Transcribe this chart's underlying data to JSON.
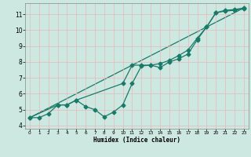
{
  "xlabel": "Humidex (Indice chaleur)",
  "bg_color": "#cce8e0",
  "grid_color": "#e8b8b8",
  "line_color": "#1a7a6a",
  "xlim": [
    -0.5,
    23.5
  ],
  "ylim": [
    3.8,
    11.7
  ],
  "yticks": [
    4,
    5,
    6,
    7,
    8,
    9,
    10,
    11
  ],
  "xticks": [
    0,
    1,
    2,
    3,
    4,
    5,
    6,
    7,
    8,
    9,
    10,
    11,
    12,
    13,
    14,
    15,
    16,
    17,
    18,
    19,
    20,
    21,
    22,
    23
  ],
  "series1_x": [
    0,
    1,
    2,
    3,
    4,
    5,
    6,
    7,
    8,
    9,
    10,
    11,
    12,
    13,
    14,
    15,
    16,
    17,
    18,
    19,
    20,
    21,
    22,
    23
  ],
  "series1_y": [
    4.5,
    4.5,
    4.75,
    5.3,
    5.3,
    5.6,
    5.2,
    5.0,
    4.55,
    4.85,
    5.3,
    6.65,
    7.75,
    7.8,
    7.65,
    8.0,
    8.2,
    8.5,
    9.4,
    10.2,
    11.1,
    11.2,
    11.25,
    11.35
  ],
  "series2_x": [
    0,
    3,
    4,
    5,
    10,
    11,
    12,
    13,
    14,
    15,
    16,
    17,
    18,
    19,
    20,
    21,
    22,
    23
  ],
  "series2_y": [
    4.5,
    5.3,
    5.3,
    5.6,
    6.65,
    7.8,
    7.8,
    7.8,
    7.9,
    8.1,
    8.4,
    8.75,
    9.5,
    10.2,
    11.1,
    11.25,
    11.3,
    11.4
  ],
  "series3_x": [
    0,
    23
  ],
  "series3_y": [
    4.5,
    11.4
  ],
  "marker_size": 2.5,
  "linewidth": 0.9
}
